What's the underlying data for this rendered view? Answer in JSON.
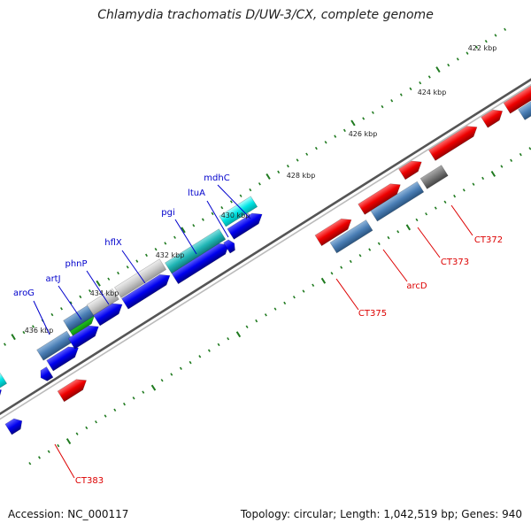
{
  "title": "Chlamydia trachomatis D/UW-3/CX, complete genome",
  "footer": {
    "accession": "Accession: NC_000117",
    "summary": "Topology: circular; Length: 1,042,519 bp; Genes: 940"
  },
  "colors": {
    "backbone": "#777777",
    "tick": "#1f7a1f",
    "forward_label": "#0000cc",
    "reverse_label": "#dd0000"
  },
  "tick_labels": [
    "422 kbp",
    "424 kbp",
    "426 kbp",
    "428 kbp",
    "430 kbp",
    "432 kbp",
    "434 kbp",
    "436 kbp"
  ],
  "forward_gene_labels": [
    "mdhC",
    "ltuA",
    "pgi",
    "hflX",
    "phnP",
    "artJ",
    "aroG"
  ],
  "reverse_gene_labels": [
    "CT372",
    "CT373",
    "arcD",
    "CT375",
    "CT383"
  ]
}
